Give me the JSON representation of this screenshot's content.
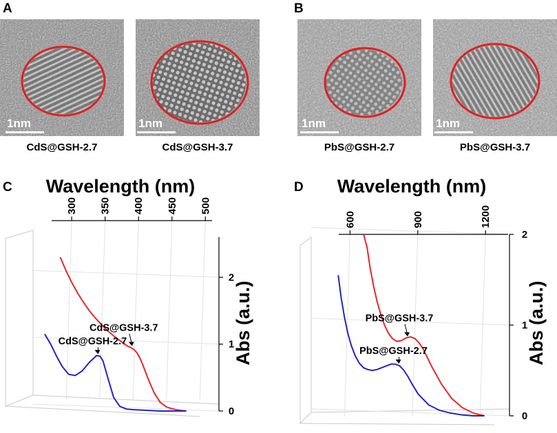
{
  "panels": {
    "A": {
      "letter": "A",
      "images": [
        {
          "caption": "CdS@GSH-2.7",
          "scale_label": "1nm"
        },
        {
          "caption": "CdS@GSH-3.7",
          "scale_label": "1nm"
        }
      ]
    },
    "B": {
      "letter": "B",
      "images": [
        {
          "caption": "PbS@GSH-2.7",
          "scale_label": "1nm"
        },
        {
          "caption": "PbS@GSH-3.7",
          "scale_label": "1nm"
        }
      ]
    },
    "C": {
      "letter": "C"
    },
    "D": {
      "letter": "D"
    }
  },
  "colors": {
    "series_red": "#e8262a",
    "series_blue": "#2323c8",
    "circle": "#e0201e"
  },
  "chart_data": [
    {
      "type": "line",
      "panel": "C",
      "xlabel": "Wavelength (nm)",
      "ylabel": "Abs (a.u.)",
      "xlim": [
        270,
        510
      ],
      "ylim": [
        0,
        2.6
      ],
      "xticks": [
        300,
        350,
        400,
        450,
        500
      ],
      "yticks": [
        0,
        1,
        2
      ],
      "series": [
        {
          "name": "CdS@GSH-3.7",
          "color": "#e8262a",
          "x": [
            285,
            295,
            305,
            315,
            325,
            335,
            345,
            355,
            365,
            375,
            385,
            395,
            400,
            405,
            410,
            415,
            420,
            430,
            440,
            450,
            460,
            470,
            480,
            490
          ],
          "y": [
            2.3,
            2.1,
            1.92,
            1.76,
            1.62,
            1.49,
            1.38,
            1.28,
            1.19,
            1.11,
            1.04,
            0.97,
            0.95,
            0.92,
            0.87,
            0.79,
            0.69,
            0.47,
            0.27,
            0.13,
            0.06,
            0.03,
            0.01,
            0.0
          ]
        },
        {
          "name": "CdS@GSH-2.7",
          "color": "#2323c8",
          "x": [
            270,
            280,
            290,
            300,
            310,
            320,
            330,
            340,
            350,
            355,
            360,
            370,
            380,
            390,
            400,
            410,
            430,
            450,
            470,
            490
          ],
          "y": [
            1.15,
            1.0,
            0.82,
            0.66,
            0.55,
            0.53,
            0.6,
            0.73,
            0.83,
            0.82,
            0.75,
            0.47,
            0.2,
            0.07,
            0.03,
            0.02,
            0.01,
            0.0,
            0.0,
            0.0
          ]
        }
      ],
      "annotations": [
        {
          "text": "CdS@GSH-3.7",
          "series": "CdS@GSH-3.7",
          "x": 400,
          "y": 0.95
        },
        {
          "text": "CdS@GSH-2.7",
          "series": "CdS@GSH-2.7",
          "x": 350,
          "y": 0.83
        }
      ]
    },
    {
      "type": "line",
      "panel": "D",
      "xlabel": "Wavelength (nm)",
      "ylabel": "Abs (a.u.)",
      "xlim": [
        550,
        1300
      ],
      "ylim": [
        0,
        2.0
      ],
      "xticks": [
        600,
        900,
        1200
      ],
      "yticks": [
        0,
        1,
        2
      ],
      "series": [
        {
          "name": "PbS@GSH-3.7",
          "color": "#e8262a",
          "x": [
            660,
            680,
            700,
            720,
            740,
            760,
            780,
            800,
            820,
            840,
            860,
            880,
            900,
            920,
            940,
            960,
            980,
            1000,
            1050,
            1100,
            1150,
            1200,
            1250
          ],
          "y": [
            2.0,
            1.85,
            1.62,
            1.43,
            1.26,
            1.12,
            1.0,
            0.91,
            0.85,
            0.82,
            0.83,
            0.86,
            0.87,
            0.85,
            0.8,
            0.73,
            0.64,
            0.55,
            0.35,
            0.19,
            0.09,
            0.03,
            0.0
          ]
        },
        {
          "name": "PbS@GSH-2.7",
          "color": "#2323c8",
          "x": [
            560,
            580,
            600,
            620,
            640,
            660,
            680,
            700,
            720,
            740,
            760,
            780,
            800,
            820,
            840,
            860,
            880,
            900,
            920,
            950,
            1000,
            1050,
            1100,
            1150,
            1200,
            1250
          ],
          "y": [
            1.55,
            1.3,
            1.09,
            0.91,
            0.77,
            0.66,
            0.58,
            0.53,
            0.51,
            0.5,
            0.51,
            0.53,
            0.55,
            0.57,
            0.57,
            0.55,
            0.5,
            0.43,
            0.35,
            0.24,
            0.12,
            0.06,
            0.03,
            0.01,
            0.0,
            0.0
          ]
        }
      ],
      "annotations": [
        {
          "text": "PbS@GSH-3.7",
          "series": "PbS@GSH-3.7",
          "x": 880,
          "y": 0.86
        },
        {
          "text": "PbS@GSH-2.7",
          "series": "PbS@GSH-2.7",
          "x": 850,
          "y": 0.56
        }
      ]
    }
  ]
}
